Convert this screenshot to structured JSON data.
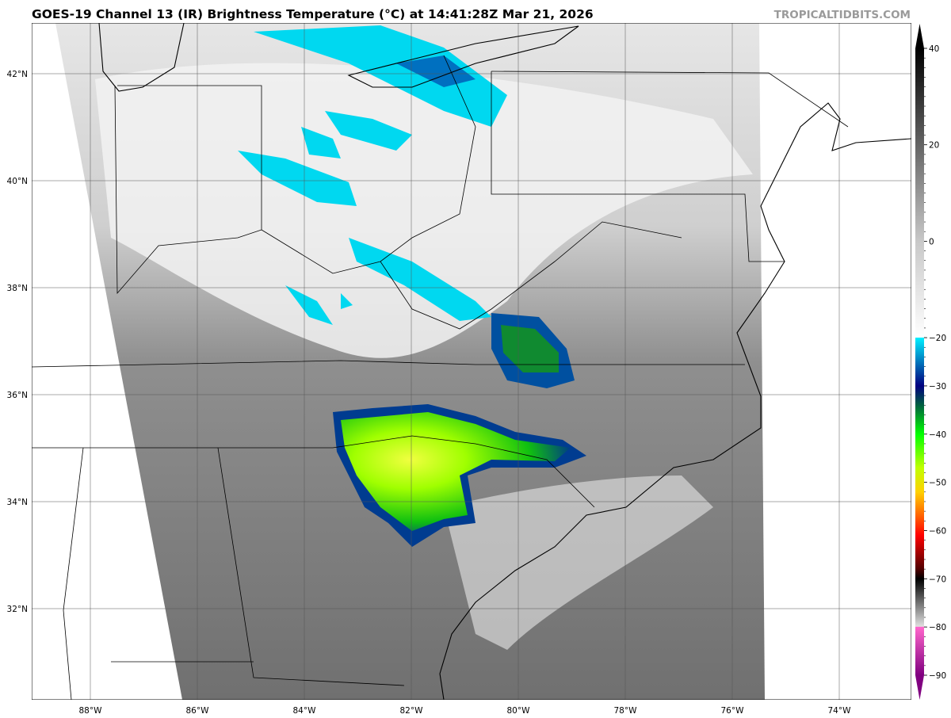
{
  "title": "GOES-19 Channel 13 (IR) Brightness Temperature (°C) at 14:41:28Z Mar 21, 2026",
  "credit": "TROPICALTIDBITS.COM",
  "map": {
    "lat_ticks": [
      {
        "value": 42,
        "label": "42°N"
      },
      {
        "value": 40,
        "label": "40°N"
      },
      {
        "value": 38,
        "label": "38°N"
      },
      {
        "value": 36,
        "label": "36°N"
      },
      {
        "value": 34,
        "label": "34°N"
      },
      {
        "value": 32,
        "label": "32°N"
      }
    ],
    "lon_ticks": [
      {
        "value": -88,
        "label": "88°W"
      },
      {
        "value": -86,
        "label": "86°W"
      },
      {
        "value": -84,
        "label": "84°W"
      },
      {
        "value": -82,
        "label": "82°W"
      },
      {
        "value": -80,
        "label": "80°W"
      },
      {
        "value": -78,
        "label": "78°W"
      },
      {
        "value": -76,
        "label": "76°W"
      },
      {
        "value": -74,
        "label": "74°W"
      }
    ]
  },
  "colorbar": {
    "range": [
      -90,
      40
    ],
    "ticks": [
      {
        "value": 40,
        "label": "40"
      },
      {
        "value": 20,
        "label": "20"
      },
      {
        "value": 0,
        "label": "0"
      },
      {
        "value": -20,
        "label": "−20"
      },
      {
        "value": -30,
        "label": "−30"
      },
      {
        "value": -40,
        "label": "−40"
      },
      {
        "value": -50,
        "label": "−50"
      },
      {
        "value": -60,
        "label": "−60"
      },
      {
        "value": -70,
        "label": "−70"
      },
      {
        "value": -80,
        "label": "−80"
      },
      {
        "value": -90,
        "label": "−90"
      }
    ],
    "stops": [
      {
        "value": 40,
        "color": "#000000"
      },
      {
        "value": 0,
        "color": "#c8c8c8"
      },
      {
        "value": -20,
        "color": "#ffffff"
      },
      {
        "value": -20.01,
        "color": "#00f0ff"
      },
      {
        "value": -26,
        "color": "#0060b0"
      },
      {
        "value": -30,
        "color": "#000080"
      },
      {
        "value": -34,
        "color": "#006040"
      },
      {
        "value": -40,
        "color": "#00ff00"
      },
      {
        "value": -47,
        "color": "#c0ff00"
      },
      {
        "value": -52,
        "color": "#ffd000"
      },
      {
        "value": -57,
        "color": "#ff6000"
      },
      {
        "value": -61,
        "color": "#ff0000"
      },
      {
        "value": -68,
        "color": "#500000"
      },
      {
        "value": -70,
        "color": "#000000"
      },
      {
        "value": -79.9,
        "color": "#e0e0e0"
      },
      {
        "value": -80,
        "color": "#ff66cc"
      },
      {
        "value": -90,
        "color": "#800080"
      }
    ]
  }
}
